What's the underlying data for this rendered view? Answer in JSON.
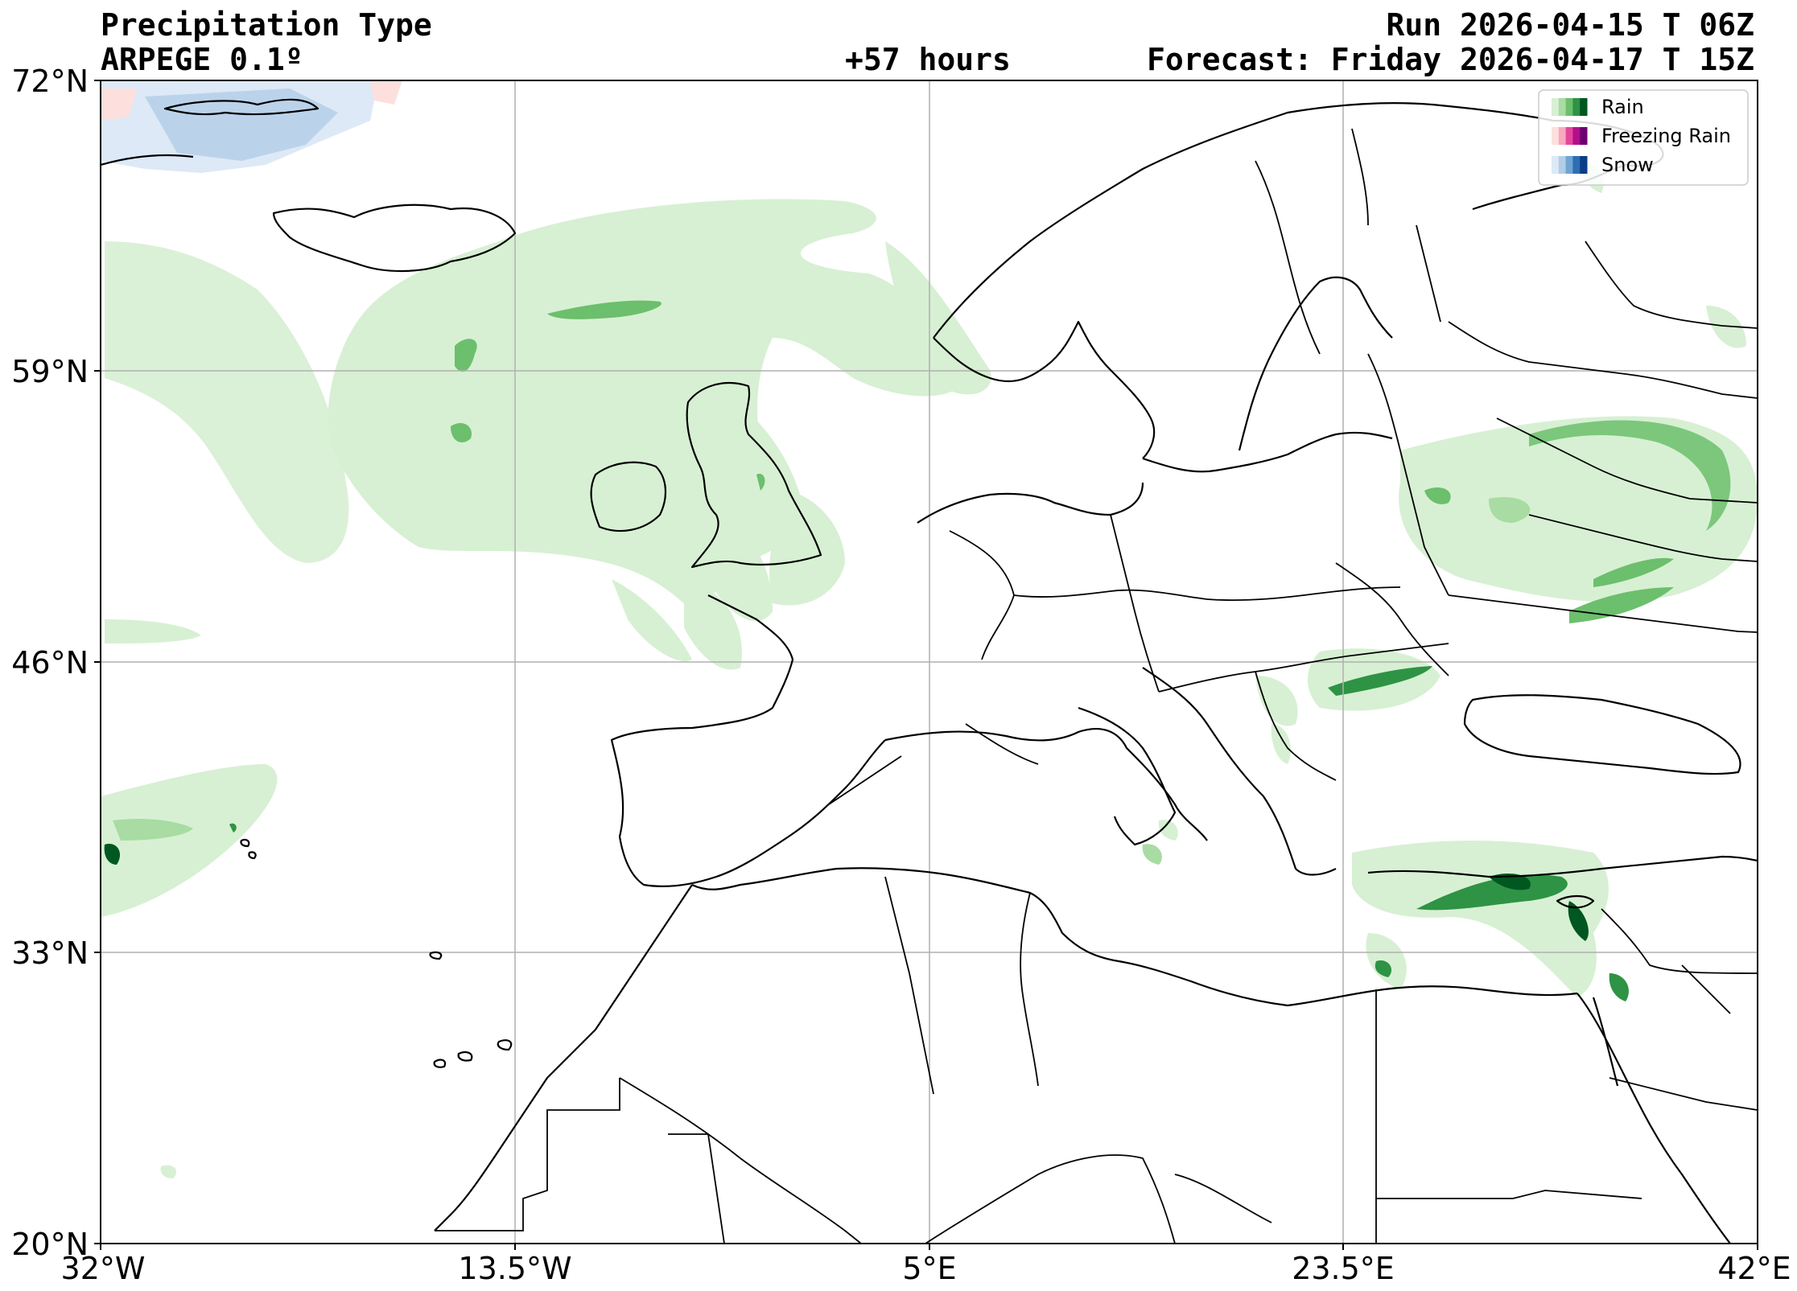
{
  "header": {
    "title": "Precipitation Type",
    "model": "ARPEGE 0.1º",
    "lead_time": "+57 hours",
    "run": "Run 2026-04-15 T 06Z",
    "forecast": "Forecast: Friday 2026-04-17 T 15Z"
  },
  "axes": {
    "lat_ticks": [
      "72°N",
      "59°N",
      "46°N",
      "33°N",
      "20°N"
    ],
    "lon_ticks": [
      "32°W",
      "13.5°W",
      "5°E",
      "23.5°E",
      "42°E"
    ],
    "lat_range": [
      20,
      72
    ],
    "lon_range": [
      -32,
      42
    ],
    "grid": true
  },
  "legend": {
    "placement": "top-right",
    "items": [
      {
        "label": "Rain",
        "colors": [
          "#d7f0d3",
          "#a8dca2",
          "#6cbf6c",
          "#2e9344",
          "#00571f"
        ]
      },
      {
        "label": "Freezing Rain",
        "colors": [
          "#fde0dd",
          "#f8a8c0",
          "#e3479c",
          "#b30f8a",
          "#6e0070"
        ]
      },
      {
        "label": "Snow",
        "colors": [
          "#dde9f6",
          "#b3cde7",
          "#6fa5d2",
          "#2e6fb3",
          "#0b3e86"
        ]
      }
    ]
  }
}
